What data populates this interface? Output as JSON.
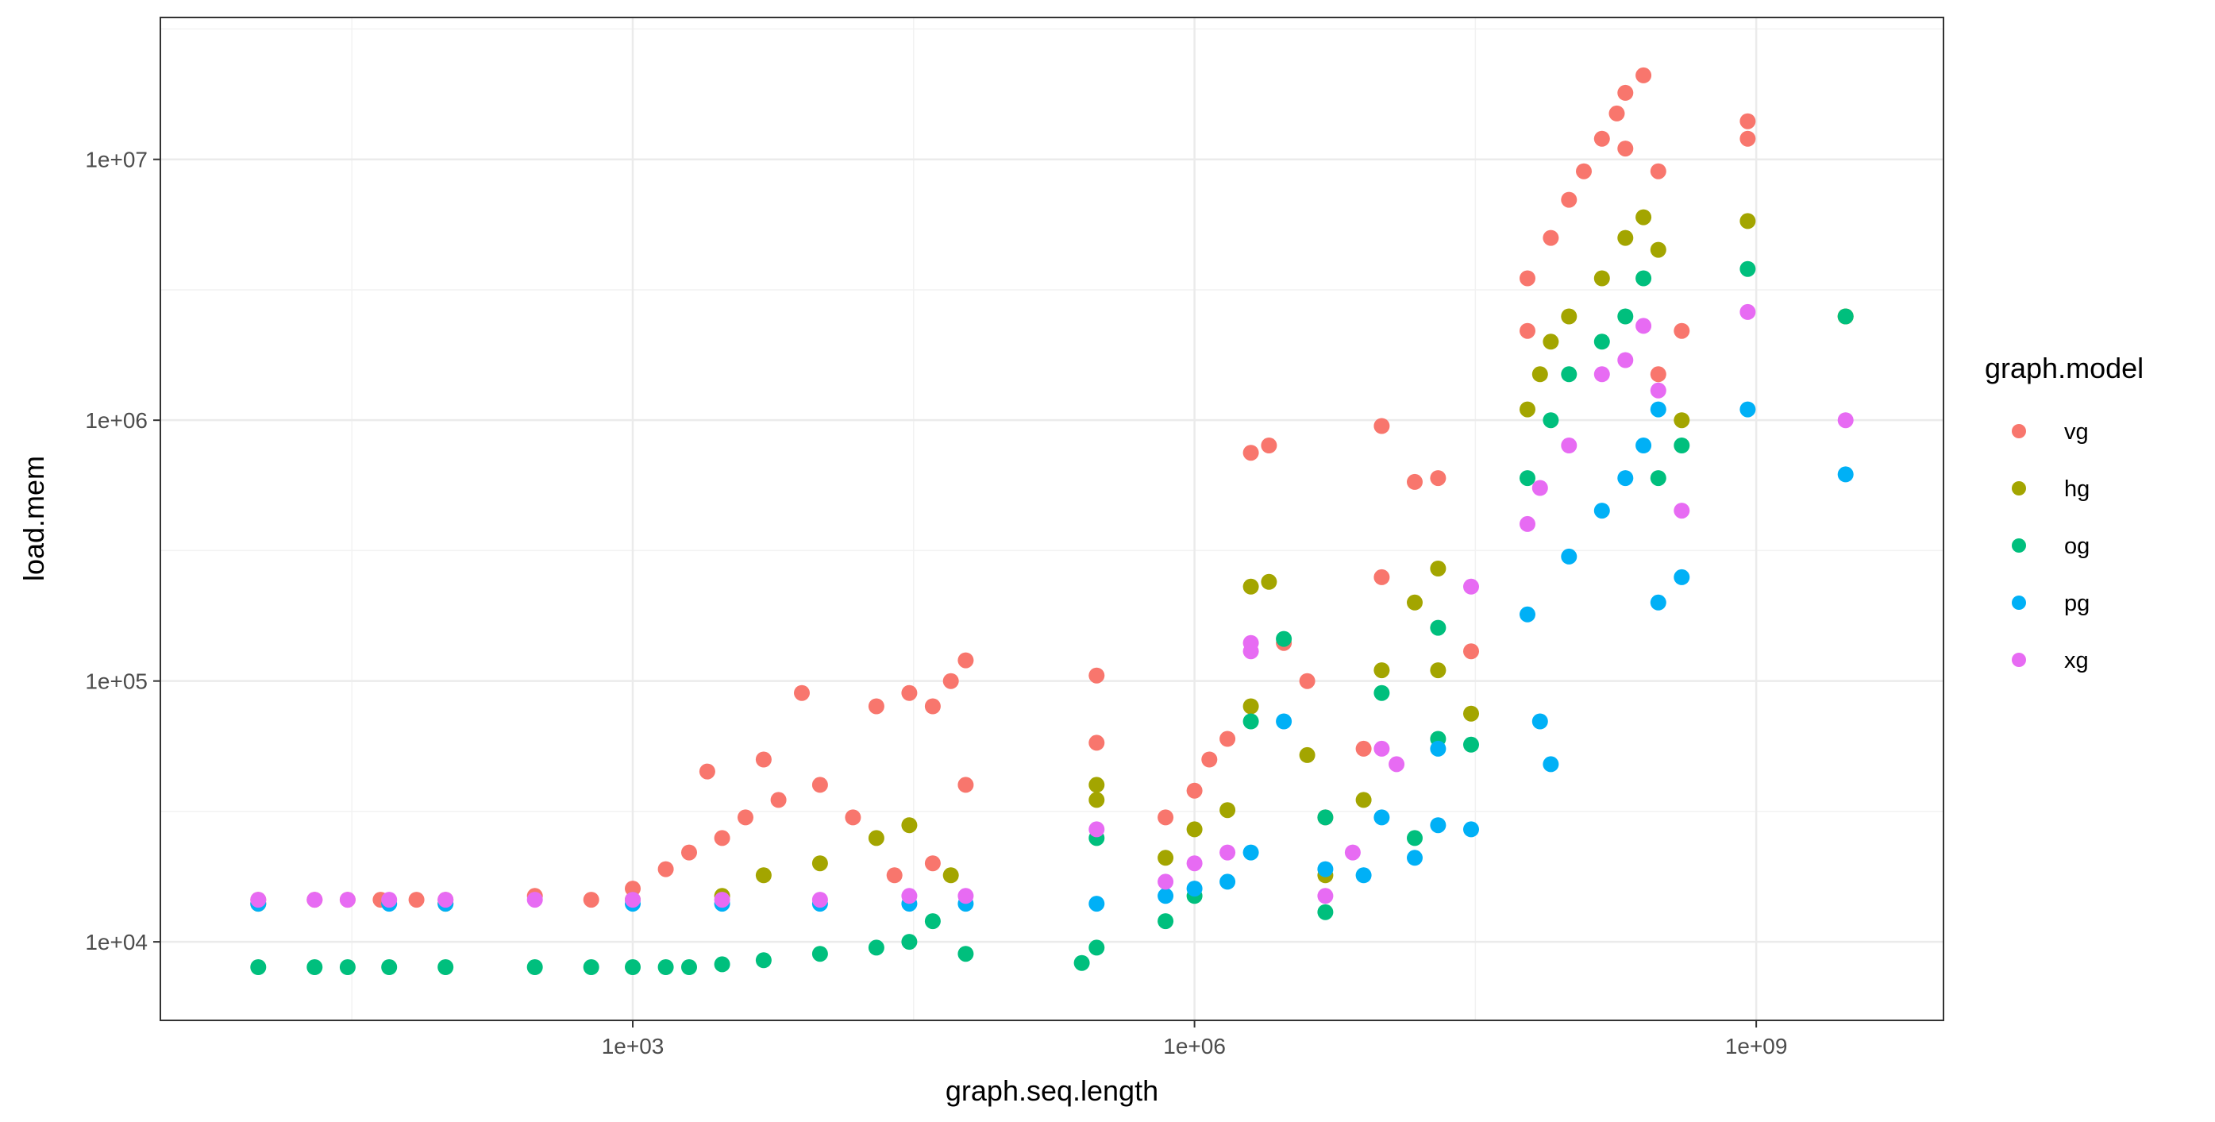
{
  "chart_data": {
    "type": "scatter",
    "xlabel": "graph.seq.length",
    "ylabel": "load.mem",
    "x_scale": "log10",
    "y_scale": "log10",
    "xlim": [
      3,
      10000000000
    ],
    "ylim": [
      5000,
      35000000
    ],
    "x_ticks": [
      {
        "value": 1000,
        "label": "1e+03"
      },
      {
        "value": 1000000,
        "label": "1e+06"
      },
      {
        "value": 1000000000,
        "label": "1e+09"
      }
    ],
    "y_ticks": [
      {
        "value": 10000,
        "label": "1e+04"
      },
      {
        "value": 100000,
        "label": "1e+05"
      },
      {
        "value": 1000000,
        "label": "1e+06"
      },
      {
        "value": 10000000,
        "label": "1e+07"
      }
    ],
    "grid": true,
    "legend_title": "graph.model",
    "legend_position": "right",
    "series": [
      {
        "name": "vg",
        "color": "#F8766D",
        "points": [
          [
            10,
            14500
          ],
          [
            20,
            14500
          ],
          [
            30,
            14500
          ],
          [
            45,
            14500
          ],
          [
            70,
            14500
          ],
          [
            100,
            14500
          ],
          [
            300,
            15000
          ],
          [
            600,
            14500
          ],
          [
            1000,
            16000
          ],
          [
            1500,
            19000
          ],
          [
            2000,
            22000
          ],
          [
            2500,
            45000
          ],
          [
            3000,
            25000
          ],
          [
            4000,
            30000
          ],
          [
            5000,
            50000
          ],
          [
            6000,
            35000
          ],
          [
            8000,
            90000
          ],
          [
            10000,
            40000
          ],
          [
            15000,
            30000
          ],
          [
            20000,
            80000
          ],
          [
            30000,
            90000
          ],
          [
            40000,
            80000
          ],
          [
            50000,
            100000
          ],
          [
            60000,
            120000
          ],
          [
            60000,
            40000
          ],
          [
            40000,
            20000
          ],
          [
            25000,
            18000
          ],
          [
            300000,
            105000
          ],
          [
            300000,
            58000
          ],
          [
            700000,
            30000
          ],
          [
            1000000,
            38000
          ],
          [
            1200000,
            50000
          ],
          [
            1500000,
            60000
          ],
          [
            2000000,
            750000
          ],
          [
            2500000,
            800000
          ],
          [
            3000000,
            140000
          ],
          [
            4000000,
            100000
          ],
          [
            5000000,
            30000
          ],
          [
            8000000,
            55000
          ],
          [
            10000000,
            250000
          ],
          [
            10000000,
            950000
          ],
          [
            15000000,
            580000
          ],
          [
            20000000,
            600000
          ],
          [
            30000000,
            130000
          ],
          [
            60000000,
            3500000
          ],
          [
            60000000,
            2200000
          ],
          [
            80000000,
            5000000
          ],
          [
            100000000,
            7000000
          ],
          [
            120000000,
            9000000
          ],
          [
            150000000,
            12000000
          ],
          [
            180000000,
            15000000
          ],
          [
            200000000,
            18000000
          ],
          [
            200000000,
            11000000
          ],
          [
            250000000,
            21000000
          ],
          [
            300000000,
            9000000
          ],
          [
            300000000,
            1500000
          ],
          [
            400000000,
            2200000
          ],
          [
            900000000,
            14000000
          ],
          [
            900000000,
            12000000
          ],
          [
            3000000000,
            2500000
          ]
        ]
      },
      {
        "name": "hg",
        "color": "#A3A500",
        "points": [
          [
            10,
            14000
          ],
          [
            100,
            14000
          ],
          [
            1000,
            14500
          ],
          [
            3000,
            15000
          ],
          [
            5000,
            18000
          ],
          [
            10000,
            20000
          ],
          [
            20000,
            25000
          ],
          [
            30000,
            28000
          ],
          [
            50000,
            18000
          ],
          [
            300000,
            40000
          ],
          [
            300000,
            35000
          ],
          [
            700000,
            21000
          ],
          [
            1000000,
            27000
          ],
          [
            1500000,
            32000
          ],
          [
            2000000,
            80000
          ],
          [
            2000000,
            230000
          ],
          [
            2500000,
            240000
          ],
          [
            4000000,
            52000
          ],
          [
            5000000,
            18000
          ],
          [
            8000000,
            35000
          ],
          [
            10000000,
            110000
          ],
          [
            15000000,
            200000
          ],
          [
            20000000,
            270000
          ],
          [
            20000000,
            110000
          ],
          [
            30000000,
            75000
          ],
          [
            60000000,
            1100000
          ],
          [
            70000000,
            1500000
          ],
          [
            80000000,
            2000000
          ],
          [
            100000000,
            2500000
          ],
          [
            150000000,
            3500000
          ],
          [
            200000000,
            5000000
          ],
          [
            250000000,
            6000000
          ],
          [
            300000000,
            4500000
          ],
          [
            400000000,
            1000000
          ],
          [
            900000000,
            5800000
          ],
          [
            3000000000,
            2500000
          ]
        ]
      },
      {
        "name": "og",
        "color": "#00BF7D",
        "points": [
          [
            10,
            8000
          ],
          [
            20,
            8000
          ],
          [
            30,
            8000
          ],
          [
            50,
            8000
          ],
          [
            100,
            8000
          ],
          [
            300,
            8000
          ],
          [
            600,
            8000
          ],
          [
            1000,
            8000
          ],
          [
            1500,
            8000
          ],
          [
            2000,
            8000
          ],
          [
            3000,
            8200
          ],
          [
            5000,
            8500
          ],
          [
            10000,
            9000
          ],
          [
            20000,
            9500
          ],
          [
            30000,
            10000
          ],
          [
            40000,
            12000
          ],
          [
            60000,
            9000
          ],
          [
            250000,
            8300
          ],
          [
            300000,
            9500
          ],
          [
            300000,
            25000
          ],
          [
            700000,
            12000
          ],
          [
            1000000,
            15000
          ],
          [
            2000000,
            70000
          ],
          [
            3000000,
            145000
          ],
          [
            5000000,
            13000
          ],
          [
            5000000,
            30000
          ],
          [
            10000000,
            90000
          ],
          [
            15000000,
            25000
          ],
          [
            20000000,
            160000
          ],
          [
            20000000,
            60000
          ],
          [
            30000000,
            57000
          ],
          [
            60000000,
            600000
          ],
          [
            80000000,
            1000000
          ],
          [
            100000000,
            1500000
          ],
          [
            150000000,
            2000000
          ],
          [
            200000000,
            2500000
          ],
          [
            250000000,
            3500000
          ],
          [
            300000000,
            600000
          ],
          [
            400000000,
            800000
          ],
          [
            900000000,
            3800000
          ],
          [
            3000000000,
            2500000
          ]
        ]
      },
      {
        "name": "pg",
        "color": "#00B0F6",
        "points": [
          [
            10,
            14000
          ],
          [
            50,
            14000
          ],
          [
            100,
            14000
          ],
          [
            1000,
            14000
          ],
          [
            3000,
            14000
          ],
          [
            10000,
            14000
          ],
          [
            30000,
            14000
          ],
          [
            60000,
            14000
          ],
          [
            300000,
            14000
          ],
          [
            700000,
            15000
          ],
          [
            1000000,
            16000
          ],
          [
            1500000,
            17000
          ],
          [
            2000000,
            22000
          ],
          [
            3000000,
            70000
          ],
          [
            5000000,
            19000
          ],
          [
            8000000,
            18000
          ],
          [
            10000000,
            30000
          ],
          [
            15000000,
            21000
          ],
          [
            20000000,
            55000
          ],
          [
            20000000,
            28000
          ],
          [
            30000000,
            27000
          ],
          [
            60000000,
            180000
          ],
          [
            70000000,
            70000
          ],
          [
            80000000,
            48000
          ],
          [
            100000000,
            300000
          ],
          [
            150000000,
            450000
          ],
          [
            200000000,
            600000
          ],
          [
            250000000,
            800000
          ],
          [
            300000000,
            1100000
          ],
          [
            300000000,
            200000
          ],
          [
            400000000,
            250000
          ],
          [
            900000000,
            1100000
          ],
          [
            3000000000,
            620000
          ]
        ]
      },
      {
        "name": "xg",
        "color": "#E76BF3",
        "points": [
          [
            10,
            14500
          ],
          [
            20,
            14500
          ],
          [
            30,
            14500
          ],
          [
            50,
            14500
          ],
          [
            100,
            14500
          ],
          [
            300,
            14500
          ],
          [
            1000,
            14500
          ],
          [
            3000,
            14500
          ],
          [
            10000,
            14500
          ],
          [
            30000,
            15000
          ],
          [
            60000,
            15000
          ],
          [
            300000,
            27000
          ],
          [
            700000,
            17000
          ],
          [
            1000000,
            20000
          ],
          [
            1500000,
            22000
          ],
          [
            2000000,
            140000
          ],
          [
            2000000,
            130000
          ],
          [
            5000000,
            15000
          ],
          [
            7000000,
            22000
          ],
          [
            10000000,
            55000
          ],
          [
            12000000,
            48000
          ],
          [
            30000000,
            230000
          ],
          [
            60000000,
            400000
          ],
          [
            70000000,
            550000
          ],
          [
            100000000,
            800000
          ],
          [
            150000000,
            1500000
          ],
          [
            200000000,
            1700000
          ],
          [
            250000000,
            2300000
          ],
          [
            300000000,
            1300000
          ],
          [
            400000000,
            450000
          ],
          [
            900000000,
            2600000
          ],
          [
            3000000000,
            1000000
          ]
        ]
      }
    ]
  }
}
